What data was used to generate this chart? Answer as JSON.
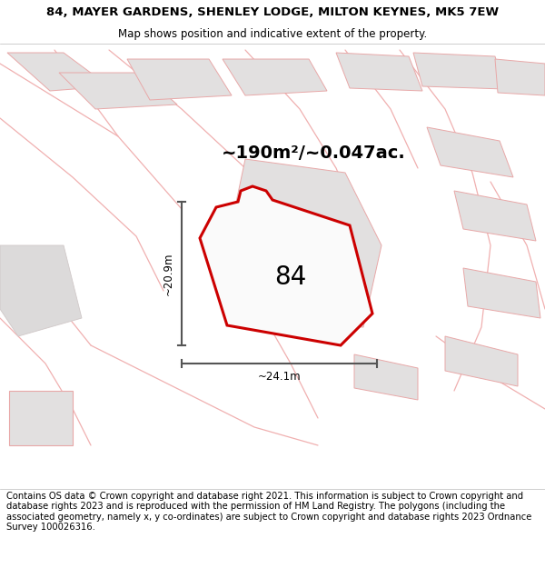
{
  "title_line1": "84, MAYER GARDENS, SHENLEY LODGE, MILTON KEYNES, MK5 7EW",
  "title_line2": "Map shows position and indicative extent of the property.",
  "area_label": "~190m²/~0.047ac.",
  "plot_number": "84",
  "dim_width": "~24.1m",
  "dim_height": "~20.9m",
  "footer_text": "Contains OS data © Crown copyright and database right 2021. This information is subject to Crown copyright and database rights 2023 and is reproduced with the permission of HM Land Registry. The polygons (including the associated geometry, namely x, y co-ordinates) are subject to Crown copyright and database rights 2023 Ordnance Survey 100026316.",
  "map_bg": "#f2f0f0",
  "plot_fill": "#f5f3f3",
  "plot_edge": "#cc0000",
  "neighbor_fill": "#e2e0e0",
  "neighbor_edge": "#e8a8a8",
  "road_edge": "#f0b0b0",
  "dim_color": "#555555",
  "title_fontsize": 9.5,
  "subtitle_fontsize": 8.5,
  "area_fontsize": 14,
  "plot_num_fontsize": 20,
  "footer_fontsize": 7.2,
  "title_bold": true
}
